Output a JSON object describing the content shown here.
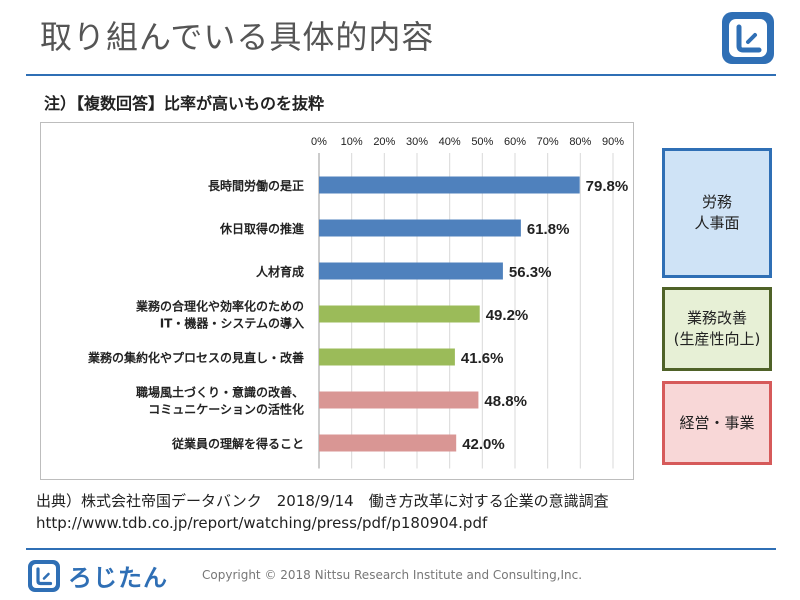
{
  "page": {
    "title": "取り組んでいる具体的内容",
    "note": "注）【複数回答】比率が高いものを抜粋",
    "source_line1": "出典）株式会社帝国データバンク　2018/9/14　働き方改革に対する企業の意識調査",
    "source_line2": "http://www.tdb.co.jp/report/watching/press/pdf/p180904.pdf",
    "brand_name": "ろじたん",
    "copyright": "Copyright © 2018 Nittsu Research Institute and Consulting,Inc.",
    "brand_color": "#2f6fb5"
  },
  "category_boxes": {
    "hr": "労務\n人事面",
    "biz": "業務改善\n(生産性向上)",
    "mgmt": "経営・事業"
  },
  "chart_data": {
    "type": "bar",
    "orientation": "horizontal",
    "xlim": [
      0,
      90
    ],
    "x_ticks": [
      "0%",
      "10%",
      "20%",
      "30%",
      "40%",
      "50%",
      "60%",
      "70%",
      "80%",
      "90%"
    ],
    "grid": true,
    "categories": [
      [
        "長時間労働の是正"
      ],
      [
        "休日取得の推進"
      ],
      [
        "人材育成"
      ],
      [
        "業務の合理化や効率化のための",
        "IT・機器・システムの導入"
      ],
      [
        "業務の集約化やプロセスの見直し・改善"
      ],
      [
        "職場風土づくり・意識の改善、",
        "コミュニケーションの活性化"
      ],
      [
        "従業員の理解を得ること"
      ]
    ],
    "values": [
      79.8,
      61.8,
      56.3,
      49.2,
      41.6,
      48.8,
      42.0
    ],
    "value_labels": [
      "79.8%",
      "61.8%",
      "56.3%",
      "49.2%",
      "41.6%",
      "48.8%",
      "42.0%"
    ],
    "bar_colors": [
      "#4f81bd",
      "#4f81bd",
      "#4f81bd",
      "#9bbb59",
      "#9bbb59",
      "#d99694",
      "#d99694"
    ]
  }
}
